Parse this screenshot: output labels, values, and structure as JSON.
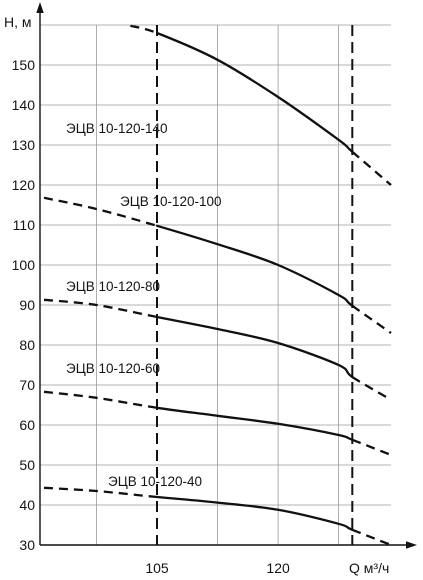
{
  "chart_data": {
    "type": "line",
    "xlabel": "Q м³/ч",
    "ylabel": "H, м",
    "xlim": [
      90.5,
      137
    ],
    "ylim": [
      30,
      160
    ],
    "x_ticks": [
      105,
      120
    ],
    "y_ticks": [
      30,
      40,
      50,
      60,
      70,
      80,
      90,
      100,
      110,
      120,
      130,
      140,
      150
    ],
    "grid": true,
    "grid_x": [
      97.5,
      112.5,
      120,
      127.5
    ],
    "grid_y": [
      40,
      50,
      60,
      70,
      80,
      90,
      100,
      110,
      120,
      130,
      140,
      150,
      160
    ],
    "vlines": [
      105,
      129.2
    ],
    "series": [
      {
        "name": "ЭЦВ 10-120-140",
        "x": [
          101.7,
          105,
          112.5,
          120,
          127.5,
          129.2,
          134
        ],
        "y": [
          159.8,
          158,
          151.3,
          142,
          131.3,
          128.3,
          120
        ]
      },
      {
        "name": "ЭЦВ 10-120-100",
        "x": [
          91,
          97.5,
          105,
          112.5,
          120,
          127.5,
          129.2,
          134
        ],
        "y": [
          116.8,
          114,
          109.8,
          105.2,
          100,
          92.5,
          89.8,
          83
        ]
      },
      {
        "name": "ЭЦВ 10-120-80",
        "x": [
          91,
          97.5,
          105,
          112.5,
          120,
          127.5,
          129.2,
          134
        ],
        "y": [
          91.3,
          90,
          87,
          84,
          80.5,
          75,
          72,
          66.3
        ]
      },
      {
        "name": "ЭЦВ 10-120-60",
        "x": [
          91,
          97.5,
          105,
          112.5,
          120,
          127.5,
          129.2,
          134
        ],
        "y": [
          68.3,
          66.8,
          64.3,
          62.3,
          60.3,
          57.5,
          56.3,
          52.5
        ]
      },
      {
        "name": "ЭЦВ 10-120-40",
        "x": [
          91,
          97.5,
          105,
          112.5,
          120,
          127.5,
          129.2,
          134
        ],
        "y": [
          44.3,
          43.5,
          42,
          40.6,
          38.8,
          35.3,
          33.8,
          30
        ]
      }
    ]
  }
}
